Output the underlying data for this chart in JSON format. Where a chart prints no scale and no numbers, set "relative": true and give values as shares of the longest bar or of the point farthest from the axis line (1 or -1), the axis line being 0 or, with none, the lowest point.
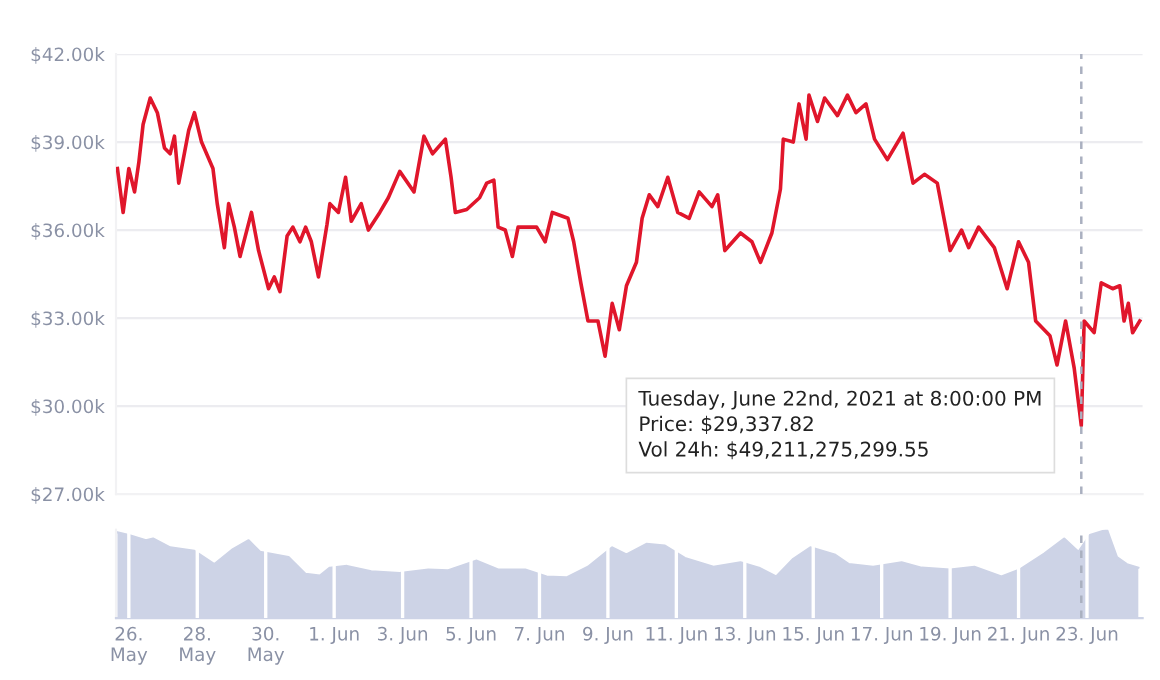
{
  "chart_data": [
    {
      "type": "line",
      "x": [
        "2021-05-25T16:00",
        "2021-05-25T20:00",
        "2021-05-26T00:00",
        "2021-05-26T04:00",
        "2021-05-26T07:00",
        "2021-05-26T10:00",
        "2021-05-26T15:00",
        "2021-05-26T20:00",
        "2021-05-27T01:00",
        "2021-05-27T05:00",
        "2021-05-27T08:00",
        "2021-05-27T11:00",
        "2021-05-27T18:00",
        "2021-05-27T22:00",
        "2021-05-28T03:00",
        "2021-05-28T11:00",
        "2021-05-28T14:00",
        "2021-05-28T19:00",
        "2021-05-28T22:00",
        "2021-05-29T02:00",
        "2021-05-29T06:00",
        "2021-05-29T14:00",
        "2021-05-29T19:00",
        "2021-05-30T02:00",
        "2021-05-30T06:00",
        "2021-05-30T10:00",
        "2021-05-30T15:00",
        "2021-05-30T19:00",
        "2021-05-31T00:00",
        "2021-05-31T04:00",
        "2021-05-31T08:00",
        "2021-05-31T13:00",
        "2021-05-31T19:00",
        "2021-05-31T21:00",
        "2021-06-01T03:00",
        "2021-06-01T08:00",
        "2021-06-01T12:00",
        "2021-06-01T19:00",
        "2021-06-02T00:00",
        "2021-06-02T08:00",
        "2021-06-02T14:00",
        "2021-06-02T22:00",
        "2021-06-03T08:00",
        "2021-06-03T15:00",
        "2021-06-03T21:00",
        "2021-06-04T06:00",
        "2021-06-04T10:00",
        "2021-06-04T13:00",
        "2021-06-04T21:00",
        "2021-06-05T06:00",
        "2021-06-05T11:00",
        "2021-06-05T16:00",
        "2021-06-05T19:00",
        "2021-06-06T00:00",
        "2021-06-06T05:00",
        "2021-06-06T09:00",
        "2021-06-06T22:00",
        "2021-06-07T04:00",
        "2021-06-07T09:00",
        "2021-06-07T20:00",
        "2021-06-08T00:00",
        "2021-06-08T05:00",
        "2021-06-08T10:00",
        "2021-06-08T17:00",
        "2021-06-08T22:00",
        "2021-06-09T03:00",
        "2021-06-09T08:00",
        "2021-06-09T13:00",
        "2021-06-09T20:00",
        "2021-06-10T00:00",
        "2021-06-10T05:00",
        "2021-06-10T11:00",
        "2021-06-10T18:00",
        "2021-06-11T01:00",
        "2021-06-11T09:00",
        "2021-06-11T16:00",
        "2021-06-12T01:00",
        "2021-06-12T05:00",
        "2021-06-12T10:00",
        "2021-06-12T21:00",
        "2021-06-13T05:00",
        "2021-06-13T11:00",
        "2021-06-13T19:00",
        "2021-06-14T01:00",
        "2021-06-14T03:00",
        "2021-06-14T10:00",
        "2021-06-14T14:00",
        "2021-06-14T19:00",
        "2021-06-14T21:00",
        "2021-06-15T03:00",
        "2021-06-15T08:00",
        "2021-06-15T17:00",
        "2021-06-16T00:00",
        "2021-06-16T06:00",
        "2021-06-16T13:00",
        "2021-06-16T19:00",
        "2021-06-17T04:00",
        "2021-06-17T15:00",
        "2021-06-17T22:00",
        "2021-06-18T06:00",
        "2021-06-18T15:00",
        "2021-06-19T00:00",
        "2021-06-19T08:00",
        "2021-06-19T13:00",
        "2021-06-19T20:00",
        "2021-06-20T07:00",
        "2021-06-20T16:00",
        "2021-06-21T00:00",
        "2021-06-21T07:00",
        "2021-06-21T12:00",
        "2021-06-21T22:00",
        "2021-06-22T03:00",
        "2021-06-22T09:00",
        "2021-06-22T15:00",
        "2021-06-22T20:00",
        "2021-06-22T22:00",
        "2021-06-23T05:00",
        "2021-06-23T10:00",
        "2021-06-23T18:00",
        "2021-06-23T23:00",
        "2021-06-24T02:00",
        "2021-06-24T05:00",
        "2021-06-24T08:00",
        "2021-06-24T13:00"
      ],
      "series": [
        {
          "color": "#e0162b",
          "values": [
            38100,
            36600,
            38100,
            37300,
            38300,
            39600,
            40500,
            40000,
            38800,
            38600,
            39200,
            37600,
            39400,
            40000,
            39000,
            38100,
            36900,
            35400,
            36900,
            36100,
            35100,
            36600,
            35300,
            34000,
            34400,
            33900,
            35800,
            36100,
            35600,
            36100,
            35600,
            34400,
            36200,
            36900,
            36600,
            37800,
            36300,
            36900,
            36000,
            36600,
            37100,
            38000,
            37300,
            39200,
            38600,
            39100,
            37800,
            36600,
            36700,
            37100,
            37600,
            37700,
            36100,
            36000,
            35100,
            36100,
            36100,
            35600,
            36600,
            36400,
            35600,
            34200,
            32900,
            32900,
            31700,
            33500,
            32600,
            34100,
            34900,
            36400,
            37200,
            36800,
            37800,
            36600,
            36400,
            37300,
            36800,
            37200,
            35300,
            35900,
            35600,
            34900,
            35900,
            37400,
            39100,
            39000,
            40300,
            39100,
            40600,
            39700,
            40500,
            39900,
            40600,
            40000,
            40300,
            39100,
            38400,
            39300,
            37600,
            37900,
            37600,
            35300,
            36000,
            35400,
            36100,
            35400,
            34000,
            35600,
            34900,
            32900,
            32400,
            31400,
            32900,
            31300,
            29337.82,
            32900,
            32500,
            34200,
            34000,
            34100,
            32900,
            33500,
            32500,
            32900
          ]
        }
      ],
      "xlim": [
        "2021-05-25T15:00",
        "2021-06-24T15:00"
      ],
      "ylim": [
        27000,
        42000
      ],
      "yticks": [
        {
          "value": 27000,
          "label": "$27.00k"
        },
        {
          "value": 30000,
          "label": "$30.00k"
        },
        {
          "value": 33000,
          "label": "$33.00k"
        },
        {
          "value": 36000,
          "label": "$36.00k"
        },
        {
          "value": 39000,
          "label": "$39.00k"
        },
        {
          "value": 42000,
          "label": "$42.00k"
        }
      ],
      "grid": "y",
      "tick_labels": "y",
      "ref_lines": [
        {
          "axis": "x",
          "value": "2021-06-22T20:00",
          "label": null,
          "color": "#aab0c0",
          "line_style": "dashed"
        }
      ],
      "annotations": [
        {
          "text": "Tuesday, June 22nd, 2021 at 8:00:00 PM\nPrice: $29,337.82\nVol 24h: $49,211,275,299.55",
          "x": "2021-06-22T20:00",
          "y": 29337.82
        }
      ]
    },
    {
      "type": "area",
      "relative": true,
      "x": [
        "2021-05-25T16:00",
        "2021-05-26T00:00",
        "2021-05-26T12:00",
        "2021-05-26T17:00",
        "2021-05-27T05:00",
        "2021-05-27T22:00",
        "2021-05-28T12:00",
        "2021-05-29T01:00",
        "2021-05-29T12:00",
        "2021-05-29T20:00",
        "2021-05-30T16:00",
        "2021-05-31T04:00",
        "2021-05-31T14:00",
        "2021-05-31T21:00",
        "2021-06-01T09:00",
        "2021-06-02T02:00",
        "2021-06-02T22:00",
        "2021-06-03T18:00",
        "2021-06-04T08:00",
        "2021-06-05T04:00",
        "2021-06-05T19:00",
        "2021-06-06T14:00",
        "2021-06-07T05:00",
        "2021-06-07T19:00",
        "2021-06-08T10:00",
        "2021-06-09T03:00",
        "2021-06-09T13:00",
        "2021-06-10T03:00",
        "2021-06-10T16:00",
        "2021-06-11T06:00",
        "2021-06-12T02:00",
        "2021-06-12T21:00",
        "2021-06-13T10:00",
        "2021-06-13T22:00",
        "2021-06-14T10:00",
        "2021-06-14T22:00",
        "2021-06-15T15:00",
        "2021-06-16T01:00",
        "2021-06-16T18:00",
        "2021-06-17T14:00",
        "2021-06-18T04:00",
        "2021-06-19T00:00",
        "2021-06-19T17:00",
        "2021-06-20T12:00",
        "2021-06-21T01:00",
        "2021-06-21T18:00",
        "2021-06-22T08:00",
        "2021-06-22T18:00",
        "2021-06-23T02:00",
        "2021-06-23T14:00",
        "2021-06-23T21:00",
        "2021-06-24T04:00",
        "2021-06-24T12:00"
      ],
      "series": [
        {
          "color": "#cdd3e6",
          "values": [
            0.97,
            0.94,
            0.88,
            0.9,
            0.8,
            0.76,
            0.61,
            0.78,
            0.88,
            0.75,
            0.69,
            0.5,
            0.48,
            0.57,
            0.59,
            0.53,
            0.51,
            0.55,
            0.54,
            0.65,
            0.55,
            0.55,
            0.47,
            0.46,
            0.58,
            0.8,
            0.72,
            0.84,
            0.82,
            0.68,
            0.58,
            0.63,
            0.57,
            0.47,
            0.67,
            0.8,
            0.72,
            0.61,
            0.58,
            0.63,
            0.57,
            0.55,
            0.58,
            0.47,
            0.55,
            0.73,
            0.9,
            0.75,
            0.94,
            1.0,
            0.69,
            0.61,
            0.57
          ]
        }
      ],
      "xlim": [
        "2021-05-25T15:00",
        "2021-06-24T15:00"
      ],
      "xticks": [
        {
          "value": "2021-05-26",
          "label": "26.\nMay"
        },
        {
          "value": "2021-05-28",
          "label": "28.\nMay"
        },
        {
          "value": "2021-05-30",
          "label": "30.\nMay"
        },
        {
          "value": "2021-06-01",
          "label": "1. Jun"
        },
        {
          "value": "2021-06-03",
          "label": "3. Jun"
        },
        {
          "value": "2021-06-05",
          "label": "5. Jun"
        },
        {
          "value": "2021-06-07",
          "label": "7. Jun"
        },
        {
          "value": "2021-06-09",
          "label": "9. Jun"
        },
        {
          "value": "2021-06-11",
          "label": "11. Jun"
        },
        {
          "value": "2021-06-13",
          "label": "13. Jun"
        },
        {
          "value": "2021-06-15",
          "label": "15. Jun"
        },
        {
          "value": "2021-06-17",
          "label": "17. Jun"
        },
        {
          "value": "2021-06-19",
          "label": "19. Jun"
        },
        {
          "value": "2021-06-21",
          "label": "21. Jun"
        },
        {
          "value": "2021-06-23",
          "label": "23. Jun"
        }
      ],
      "grid": "x",
      "tick_labels": "x",
      "ref_lines": [
        {
          "axis": "x",
          "value": "2021-06-22T20:00",
          "label": null,
          "color": "#aab0c0",
          "line_style": "dashed"
        }
      ]
    }
  ]
}
